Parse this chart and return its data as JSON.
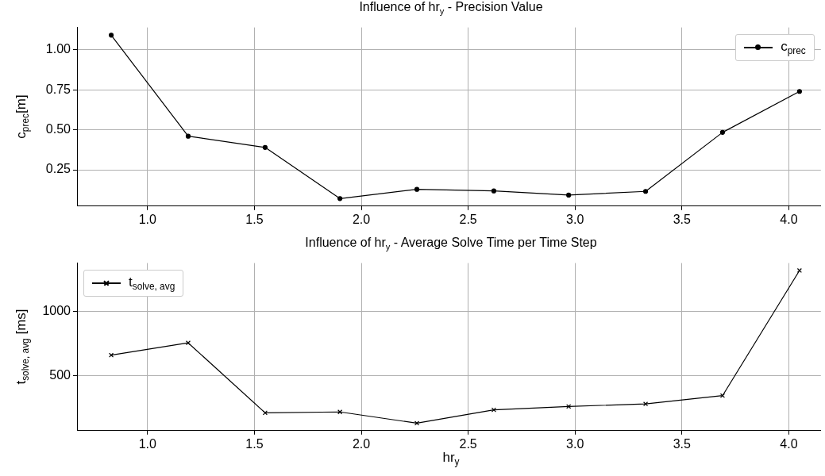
{
  "chart_data": [
    {
      "type": "line",
      "title": "Influence of hr$_{y}$ - Precision Value",
      "ylabel": "c$_{prec}$[m]",
      "x": [
        0.83,
        1.19,
        1.55,
        1.9,
        2.26,
        2.62,
        2.97,
        3.33,
        3.69,
        4.05
      ],
      "series": [
        {
          "name": "c$_{prec}$",
          "color": "#000000",
          "values": [
            1.092,
            0.46,
            0.39,
            0.07,
            0.128,
            0.118,
            0.092,
            0.115,
            0.484,
            0.74
          ]
        }
      ],
      "xlim": [
        0.67,
        4.15
      ],
      "xticks": [
        {
          "value": 1,
          "label": "1.0"
        },
        1.5,
        {
          "value": 2,
          "label": "2.0"
        },
        2.5,
        {
          "value": 3,
          "label": "3.0"
        },
        3.5,
        {
          "value": 4,
          "label": "4.0"
        }
      ],
      "ylim": [
        0.023,
        1.14
      ],
      "yticks": [
        0.25,
        {
          "value": 0.5,
          "label": "0.50"
        },
        0.75,
        {
          "value": 1,
          "label": "1.00"
        }
      ],
      "grid": true,
      "legend": "top right",
      "marker": "circle",
      "line_style": "solid"
    },
    {
      "type": "line",
      "title": "Influence of hr$_{y}$ - Average Solve Time per Time Step",
      "xlabel": "hr$_{y}$",
      "ylabel": "t$_{solve, avg}$ [ms]",
      "x": [
        0.83,
        1.19,
        1.55,
        1.9,
        2.26,
        2.62,
        2.97,
        3.33,
        3.69,
        4.05
      ],
      "series": [
        {
          "name": "t$_{solve, avg}$",
          "color": "#000000",
          "values": [
            658,
            754,
            208,
            215,
            127,
            231,
            258,
            277,
            342,
            1319
          ]
        }
      ],
      "xlim": [
        0.67,
        4.15
      ],
      "xticks": [
        {
          "value": 1,
          "label": "1.0"
        },
        1.5,
        {
          "value": 2,
          "label": "2.0"
        },
        2.5,
        {
          "value": 3,
          "label": "3.0"
        },
        3.5,
        {
          "value": 4,
          "label": "4.0"
        }
      ],
      "ylim": [
        69,
        1377
      ],
      "yticks": [
        500,
        1000
      ],
      "grid": true,
      "legend": "top left",
      "marker": "cross",
      "line_style": "solid"
    }
  ]
}
